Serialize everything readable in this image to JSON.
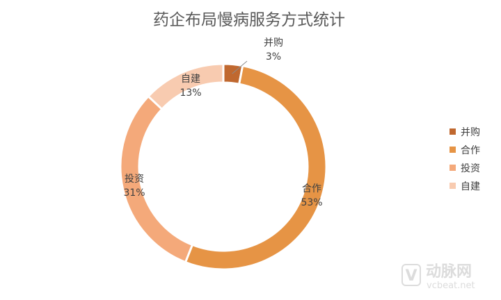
{
  "chart_data": {
    "type": "pie",
    "variant": "doughnut",
    "title": "药企布局慢病服务方式统计",
    "categories": [
      "并购",
      "合作",
      "投资",
      "自建"
    ],
    "values": [
      3,
      53,
      31,
      13
    ],
    "labels": [
      "3%",
      "53%",
      "31%",
      "13%"
    ],
    "colors": [
      "#c0682f",
      "#e69445",
      "#f4a97a",
      "#f8cbb0"
    ],
    "legend_position": "right"
  },
  "watermark": {
    "logo_letter": "V",
    "brand": "动脉网",
    "url": "vcbeat.net"
  }
}
